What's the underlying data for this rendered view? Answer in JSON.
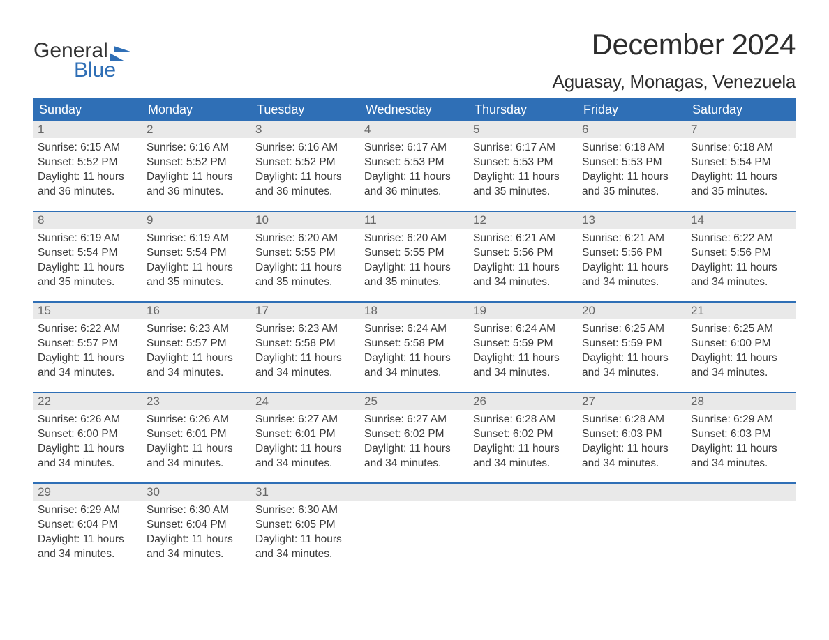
{
  "logo": {
    "top": "General",
    "bottom": "Blue",
    "shape_color": "#2f6fb6"
  },
  "title": "December 2024",
  "location": "Aguasay, Monagas, Venezuela",
  "colors": {
    "header_bg": "#2f6fb6",
    "header_text": "#ffffff",
    "daynum_bg": "#e9e9e9",
    "daynum_text": "#666666",
    "week_border": "#2f6fb6",
    "body_text": "#3a3a3a"
  },
  "weekdays": [
    "Sunday",
    "Monday",
    "Tuesday",
    "Wednesday",
    "Thursday",
    "Friday",
    "Saturday"
  ],
  "labels": {
    "sunrise": "Sunrise:",
    "sunset": "Sunset:",
    "daylight": "Daylight:"
  },
  "weeks": [
    [
      {
        "n": "1",
        "sr": "6:15 AM",
        "ss": "5:52 PM",
        "dl": "11 hours and 36 minutes."
      },
      {
        "n": "2",
        "sr": "6:16 AM",
        "ss": "5:52 PM",
        "dl": "11 hours and 36 minutes."
      },
      {
        "n": "3",
        "sr": "6:16 AM",
        "ss": "5:52 PM",
        "dl": "11 hours and 36 minutes."
      },
      {
        "n": "4",
        "sr": "6:17 AM",
        "ss": "5:53 PM",
        "dl": "11 hours and 36 minutes."
      },
      {
        "n": "5",
        "sr": "6:17 AM",
        "ss": "5:53 PM",
        "dl": "11 hours and 35 minutes."
      },
      {
        "n": "6",
        "sr": "6:18 AM",
        "ss": "5:53 PM",
        "dl": "11 hours and 35 minutes."
      },
      {
        "n": "7",
        "sr": "6:18 AM",
        "ss": "5:54 PM",
        "dl": "11 hours and 35 minutes."
      }
    ],
    [
      {
        "n": "8",
        "sr": "6:19 AM",
        "ss": "5:54 PM",
        "dl": "11 hours and 35 minutes."
      },
      {
        "n": "9",
        "sr": "6:19 AM",
        "ss": "5:54 PM",
        "dl": "11 hours and 35 minutes."
      },
      {
        "n": "10",
        "sr": "6:20 AM",
        "ss": "5:55 PM",
        "dl": "11 hours and 35 minutes."
      },
      {
        "n": "11",
        "sr": "6:20 AM",
        "ss": "5:55 PM",
        "dl": "11 hours and 35 minutes."
      },
      {
        "n": "12",
        "sr": "6:21 AM",
        "ss": "5:56 PM",
        "dl": "11 hours and 34 minutes."
      },
      {
        "n": "13",
        "sr": "6:21 AM",
        "ss": "5:56 PM",
        "dl": "11 hours and 34 minutes."
      },
      {
        "n": "14",
        "sr": "6:22 AM",
        "ss": "5:56 PM",
        "dl": "11 hours and 34 minutes."
      }
    ],
    [
      {
        "n": "15",
        "sr": "6:22 AM",
        "ss": "5:57 PM",
        "dl": "11 hours and 34 minutes."
      },
      {
        "n": "16",
        "sr": "6:23 AM",
        "ss": "5:57 PM",
        "dl": "11 hours and 34 minutes."
      },
      {
        "n": "17",
        "sr": "6:23 AM",
        "ss": "5:58 PM",
        "dl": "11 hours and 34 minutes."
      },
      {
        "n": "18",
        "sr": "6:24 AM",
        "ss": "5:58 PM",
        "dl": "11 hours and 34 minutes."
      },
      {
        "n": "19",
        "sr": "6:24 AM",
        "ss": "5:59 PM",
        "dl": "11 hours and 34 minutes."
      },
      {
        "n": "20",
        "sr": "6:25 AM",
        "ss": "5:59 PM",
        "dl": "11 hours and 34 minutes."
      },
      {
        "n": "21",
        "sr": "6:25 AM",
        "ss": "6:00 PM",
        "dl": "11 hours and 34 minutes."
      }
    ],
    [
      {
        "n": "22",
        "sr": "6:26 AM",
        "ss": "6:00 PM",
        "dl": "11 hours and 34 minutes."
      },
      {
        "n": "23",
        "sr": "6:26 AM",
        "ss": "6:01 PM",
        "dl": "11 hours and 34 minutes."
      },
      {
        "n": "24",
        "sr": "6:27 AM",
        "ss": "6:01 PM",
        "dl": "11 hours and 34 minutes."
      },
      {
        "n": "25",
        "sr": "6:27 AM",
        "ss": "6:02 PM",
        "dl": "11 hours and 34 minutes."
      },
      {
        "n": "26",
        "sr": "6:28 AM",
        "ss": "6:02 PM",
        "dl": "11 hours and 34 minutes."
      },
      {
        "n": "27",
        "sr": "6:28 AM",
        "ss": "6:03 PM",
        "dl": "11 hours and 34 minutes."
      },
      {
        "n": "28",
        "sr": "6:29 AM",
        "ss": "6:03 PM",
        "dl": "11 hours and 34 minutes."
      }
    ],
    [
      {
        "n": "29",
        "sr": "6:29 AM",
        "ss": "6:04 PM",
        "dl": "11 hours and 34 minutes."
      },
      {
        "n": "30",
        "sr": "6:30 AM",
        "ss": "6:04 PM",
        "dl": "11 hours and 34 minutes."
      },
      {
        "n": "31",
        "sr": "6:30 AM",
        "ss": "6:05 PM",
        "dl": "11 hours and 34 minutes."
      },
      {
        "n": "",
        "sr": "",
        "ss": "",
        "dl": "",
        "empty": true
      },
      {
        "n": "",
        "sr": "",
        "ss": "",
        "dl": "",
        "empty": true
      },
      {
        "n": "",
        "sr": "",
        "ss": "",
        "dl": "",
        "empty": true
      },
      {
        "n": "",
        "sr": "",
        "ss": "",
        "dl": "",
        "empty": true
      }
    ]
  ]
}
